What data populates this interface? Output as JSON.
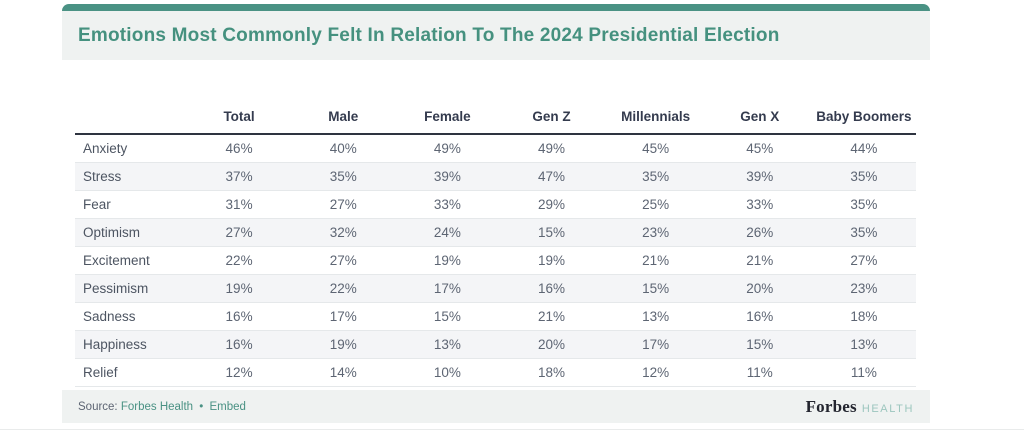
{
  "title": "Emotions Most Commonly Felt In Relation To The 2024 Presidential Election",
  "colors": {
    "accent_teal": "#4a9284",
    "title_teal": "#45917f",
    "band_bg": "#eff2f1",
    "row_stripe": "#f4f5f7",
    "header_text": "#343b4e",
    "value_text": "#5d6573",
    "label_text": "#4d5562",
    "link_teal": "#4a9284",
    "brand_sub_teal": "#9cc6be"
  },
  "chart_data": {
    "type": "table",
    "title": "Emotions Most Commonly Felt In Relation To The 2024 Presidential Election",
    "columns": [
      "",
      "Total",
      "Male",
      "Female",
      "Gen Z",
      "Millennials",
      "Gen X",
      "Baby Boomers"
    ],
    "rows": [
      {
        "label": "Anxiety",
        "values": [
          "46%",
          "40%",
          "49%",
          "49%",
          "45%",
          "45%",
          "44%"
        ]
      },
      {
        "label": "Stress",
        "values": [
          "37%",
          "35%",
          "39%",
          "47%",
          "35%",
          "39%",
          "35%"
        ]
      },
      {
        "label": "Fear",
        "values": [
          "31%",
          "27%",
          "33%",
          "29%",
          "25%",
          "33%",
          "35%"
        ]
      },
      {
        "label": "Optimism",
        "values": [
          "27%",
          "32%",
          "24%",
          "15%",
          "23%",
          "26%",
          "35%"
        ]
      },
      {
        "label": "Excitement",
        "values": [
          "22%",
          "27%",
          "19%",
          "19%",
          "21%",
          "21%",
          "27%"
        ]
      },
      {
        "label": "Pessimism",
        "values": [
          "19%",
          "22%",
          "17%",
          "16%",
          "15%",
          "20%",
          "23%"
        ]
      },
      {
        "label": "Sadness",
        "values": [
          "16%",
          "17%",
          "15%",
          "21%",
          "13%",
          "16%",
          "18%"
        ]
      },
      {
        "label": "Happiness",
        "values": [
          "16%",
          "19%",
          "13%",
          "20%",
          "17%",
          "15%",
          "13%"
        ]
      },
      {
        "label": "Relief",
        "values": [
          "12%",
          "14%",
          "10%",
          "18%",
          "12%",
          "11%",
          "11%"
        ]
      }
    ]
  },
  "footer": {
    "source_label": "Source:",
    "source_link": "Forbes Health",
    "separator": "•",
    "embed_link": "Embed",
    "brand": "Forbes",
    "brand_sub": "HEALTH"
  }
}
